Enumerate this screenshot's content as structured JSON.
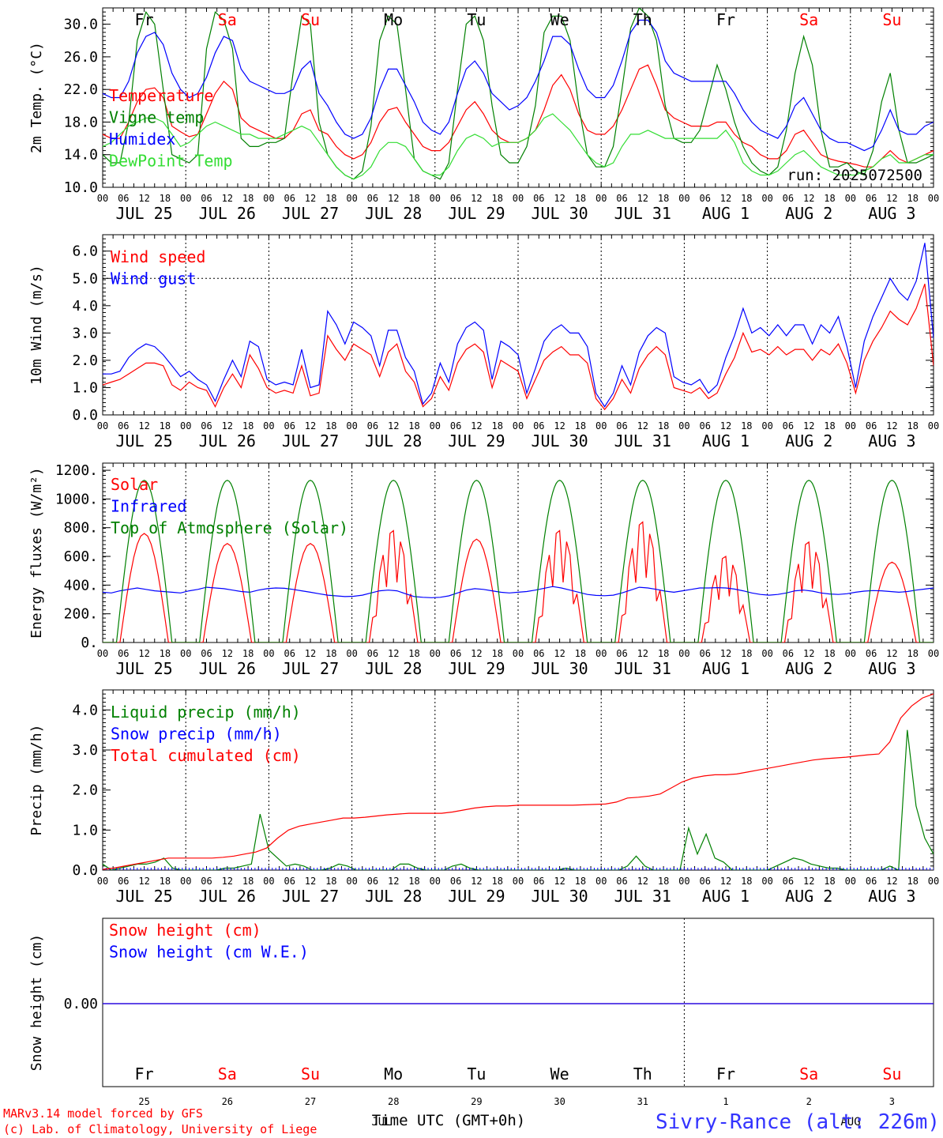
{
  "colors": {
    "red": "#ff0000",
    "green": "#008000",
    "blue": "#0000ff",
    "lime": "#33dd33",
    "black": "#000000"
  },
  "days": {
    "names": [
      "Fr",
      "Sa",
      "Su",
      "Mo",
      "Tu",
      "We",
      "Th",
      "Fr",
      "Sa",
      "Su"
    ],
    "weekend": [
      false,
      true,
      true,
      false,
      false,
      false,
      false,
      false,
      true,
      true
    ],
    "dates": [
      "JUL 25",
      "JUL 26",
      "JUL 27",
      "JUL 28",
      "JUL 29",
      "JUL 30",
      "JUL 31",
      "AUG 1",
      "AUG 2",
      "AUG 3"
    ],
    "daynums": [
      "25",
      "26",
      "27",
      "28",
      "29",
      "30",
      "31",
      "1",
      "2",
      "3"
    ]
  },
  "hour_labels": [
    "00",
    "06",
    "12",
    "18"
  ],
  "last_hour_label": "00",
  "run_label": "run: 2025072500",
  "footer": {
    "model": "MARv3.14 model forced by GFS",
    "copyright": "(c) Lab. of Climatology, University of Liege",
    "xlabel": "Time UTC (GMT+0h)",
    "month_overprint": "JUL",
    "month_overprint_2": "AUG",
    "station": "Sivry-Rance (alt: 226m)"
  },
  "chart_data": [
    {
      "type": "line",
      "ylabel": "2m Temp. (°C)",
      "ylim": [
        10,
        32
      ],
      "yticks": [
        "10.0",
        "14.0",
        "18.0",
        "22.0",
        "26.0",
        "30.0"
      ],
      "x": "hours since JUL 25 00 UTC, every 3 h (0-240)",
      "series": [
        {
          "name": "Temperature",
          "color": "red",
          "values": [
            16.5,
            16.0,
            16.0,
            18.0,
            20.5,
            22.0,
            22.2,
            21.0,
            17.5,
            16.8,
            16.2,
            16.5,
            19.0,
            21.5,
            23.0,
            22.0,
            18.5,
            17.5,
            17.0,
            16.5,
            16.0,
            16.0,
            17.0,
            19.0,
            19.5,
            17.0,
            16.5,
            15.0,
            14.0,
            13.5,
            14.0,
            15.5,
            18.0,
            19.5,
            19.8,
            18.0,
            16.5,
            15.0,
            14.5,
            14.5,
            15.5,
            17.5,
            19.5,
            20.5,
            19.0,
            17.0,
            16.0,
            15.5,
            15.5,
            16.0,
            17.0,
            19.5,
            22.5,
            23.8,
            22.0,
            19.0,
            17.0,
            16.5,
            16.5,
            17.5,
            19.5,
            22.0,
            24.5,
            25.0,
            22.5,
            19.5,
            18.5,
            18.0,
            17.5,
            17.5,
            17.5,
            18.0,
            18.0,
            16.5,
            15.5,
            15.0,
            14.0,
            13.5,
            13.5,
            14.5,
            16.5,
            17.0,
            15.5,
            14.0,
            13.5,
            13.2,
            13.0,
            12.8,
            12.5,
            12.5,
            13.5,
            14.5,
            13.5,
            13.0,
            13.5,
            14.0,
            14.5
          ]
        },
        {
          "name": "Vigne temp",
          "color": "green",
          "values": [
            14.0,
            13.0,
            13.0,
            18.0,
            28.0,
            31.5,
            30.0,
            22.0,
            14.0,
            13.5,
            13.0,
            14.0,
            27.0,
            31.5,
            30.5,
            27.0,
            16.0,
            15.0,
            15.0,
            15.5,
            15.5,
            16.0,
            24.0,
            31.0,
            30.0,
            18.0,
            14.0,
            12.5,
            11.5,
            11.0,
            12.0,
            17.5,
            28.0,
            31.0,
            30.0,
            22.0,
            13.5,
            12.0,
            11.5,
            11.0,
            13.0,
            22.0,
            30.0,
            31.0,
            28.0,
            20.0,
            14.0,
            13.0,
            13.0,
            15.0,
            20.0,
            29.0,
            31.0,
            31.0,
            28.0,
            20.0,
            14.0,
            12.5,
            12.5,
            15.0,
            22.0,
            29.5,
            32.0,
            31.0,
            28.0,
            20.0,
            16.0,
            15.5,
            15.5,
            17.0,
            21.0,
            25.0,
            22.0,
            18.0,
            15.0,
            13.0,
            12.0,
            11.5,
            12.5,
            17.0,
            24.0,
            28.5,
            25.0,
            17.0,
            12.5,
            12.5,
            13.0,
            12.0,
            11.5,
            14.5,
            20.5,
            24.0,
            17.0,
            13.0,
            13.0,
            13.5,
            14.0
          ]
        },
        {
          "name": "Humidex",
          "color": "blue",
          "values": [
            21.5,
            21.0,
            21.0,
            23.0,
            26.5,
            28.5,
            29.0,
            27.5,
            24.0,
            22.0,
            21.0,
            21.5,
            23.5,
            26.5,
            28.5,
            28.0,
            24.5,
            23.0,
            22.5,
            22.0,
            21.5,
            21.5,
            22.0,
            24.5,
            25.5,
            21.5,
            20.0,
            18.0,
            16.5,
            16.0,
            16.5,
            18.5,
            22.0,
            24.5,
            24.5,
            22.5,
            20.5,
            18.0,
            17.0,
            16.5,
            18.0,
            21.5,
            24.5,
            25.5,
            24.0,
            21.5,
            20.5,
            19.5,
            20.0,
            21.0,
            23.0,
            25.5,
            28.5,
            28.5,
            27.5,
            24.5,
            22.0,
            21.0,
            21.0,
            22.5,
            25.5,
            29.0,
            30.5,
            30.5,
            29.0,
            25.5,
            24.0,
            23.5,
            23.0,
            23.0,
            23.0,
            23.0,
            23.0,
            21.5,
            19.5,
            18.0,
            17.0,
            16.5,
            16.0,
            17.5,
            20.0,
            21.0,
            19.0,
            17.0,
            16.0,
            15.5,
            15.5,
            15.0,
            14.5,
            15.0,
            17.0,
            19.5,
            17.0,
            16.5,
            16.5,
            17.5,
            18.0
          ]
        },
        {
          "name": "DewPoint Temp",
          "color": "lime",
          "values": [
            15.0,
            15.5,
            16.5,
            17.5,
            18.0,
            18.5,
            18.5,
            18.0,
            16.5,
            15.0,
            15.5,
            16.5,
            17.5,
            18.0,
            17.5,
            17.0,
            16.5,
            16.5,
            16.0,
            16.0,
            16.0,
            16.5,
            17.0,
            17.5,
            17.0,
            15.5,
            14.0,
            12.5,
            11.5,
            11.0,
            11.5,
            12.5,
            14.5,
            15.5,
            15.5,
            15.0,
            13.5,
            12.0,
            11.5,
            11.5,
            12.5,
            14.5,
            16.0,
            16.5,
            16.0,
            15.0,
            15.5,
            15.5,
            15.5,
            16.0,
            17.0,
            18.5,
            19.0,
            18.0,
            17.0,
            15.5,
            14.0,
            13.0,
            12.5,
            13.0,
            15.0,
            16.5,
            16.5,
            17.0,
            16.5,
            16.0,
            16.0,
            16.0,
            16.0,
            16.0,
            16.0,
            16.0,
            17.0,
            15.5,
            13.0,
            12.0,
            11.5,
            11.5,
            12.0,
            13.0,
            14.0,
            14.5,
            13.5,
            12.5,
            12.0,
            11.5,
            11.5,
            11.5,
            12.0,
            12.5,
            13.5,
            14.0,
            13.0,
            13.0,
            13.5,
            14.0,
            14.0
          ]
        }
      ]
    },
    {
      "type": "line",
      "ylabel": "10m Wind (m/s)",
      "ylim": [
        0,
        6.6
      ],
      "yticks": [
        "0.0",
        "1.0",
        "2.0",
        "3.0",
        "4.0",
        "5.0",
        "6.0"
      ],
      "reference_line": 5.0,
      "series": [
        {
          "name": "Wind speed",
          "color": "red",
          "values": [
            1.1,
            1.2,
            1.3,
            1.5,
            1.7,
            1.9,
            1.9,
            1.8,
            1.1,
            0.9,
            1.2,
            1.0,
            0.9,
            0.3,
            1.0,
            1.5,
            1.0,
            2.2,
            1.7,
            1.0,
            0.8,
            0.9,
            0.8,
            1.8,
            0.7,
            0.8,
            2.9,
            2.4,
            2.0,
            2.6,
            2.4,
            2.2,
            1.4,
            2.3,
            2.6,
            1.6,
            1.2,
            0.3,
            0.6,
            1.4,
            0.9,
            1.9,
            2.4,
            2.6,
            2.3,
            1.0,
            2.0,
            1.8,
            1.6,
            0.6,
            1.3,
            2.0,
            2.3,
            2.5,
            2.2,
            2.2,
            1.9,
            0.6,
            0.2,
            0.6,
            1.3,
            0.8,
            1.7,
            2.2,
            2.5,
            2.2,
            1.0,
            0.9,
            0.8,
            1.0,
            0.6,
            0.8,
            1.5,
            2.1,
            3.0,
            2.3,
            2.4,
            2.2,
            2.5,
            2.2,
            2.4,
            2.4,
            2.0,
            2.4,
            2.2,
            2.6,
            1.9,
            0.8,
            2.0,
            2.7,
            3.2,
            3.8,
            3.5,
            3.3,
            3.9,
            4.8,
            1.8
          ]
        },
        {
          "name": "Wind gust",
          "color": "blue",
          "values": [
            1.5,
            1.5,
            1.6,
            2.1,
            2.4,
            2.6,
            2.5,
            2.2,
            1.8,
            1.4,
            1.6,
            1.3,
            1.1,
            0.5,
            1.3,
            2.0,
            1.4,
            2.7,
            2.5,
            1.3,
            1.1,
            1.2,
            1.1,
            2.4,
            1.0,
            1.1,
            3.8,
            3.3,
            2.6,
            3.4,
            3.2,
            2.9,
            1.8,
            3.1,
            3.1,
            2.1,
            1.6,
            0.4,
            0.8,
            1.9,
            1.2,
            2.6,
            3.2,
            3.4,
            3.1,
            1.3,
            2.7,
            2.5,
            2.2,
            0.8,
            1.7,
            2.7,
            3.1,
            3.3,
            3.0,
            3.0,
            2.5,
            0.8,
            0.3,
            0.8,
            1.8,
            1.1,
            2.3,
            2.9,
            3.2,
            3.0,
            1.4,
            1.2,
            1.1,
            1.3,
            0.8,
            1.1,
            2.1,
            2.9,
            3.9,
            3.0,
            3.2,
            2.9,
            3.3,
            2.9,
            3.3,
            3.3,
            2.6,
            3.3,
            3.0,
            3.6,
            2.5,
            1.0,
            2.7,
            3.6,
            4.3,
            5.0,
            4.5,
            4.2,
            4.9,
            6.3,
            2.8
          ]
        }
      ]
    },
    {
      "type": "line",
      "ylabel": "Energy fluxes (W/m²)",
      "ylim": [
        0,
        1250
      ],
      "yticks": [
        "0.",
        "200.",
        "400.",
        "600.",
        "800.",
        "1000.",
        "1200."
      ],
      "series": [
        {
          "name": "Solar",
          "color": "red",
          "daily_peaks": [
            760,
            690,
            690,
            780,
            720,
            780,
            840,
            600,
            700,
            560
          ]
        },
        {
          "name": "Infrared",
          "color": "blue",
          "values": [
            350,
            345,
            360,
            370,
            380,
            370,
            360,
            355,
            350,
            345,
            360,
            370,
            385,
            380,
            375,
            365,
            355,
            350,
            365,
            375,
            380,
            378,
            370,
            360,
            350,
            340,
            330,
            325,
            320,
            322,
            330,
            345,
            360,
            365,
            360,
            340,
            320,
            315,
            312,
            315,
            325,
            345,
            365,
            375,
            370,
            360,
            350,
            345,
            350,
            355,
            365,
            378,
            390,
            380,
            365,
            350,
            335,
            328,
            326,
            330,
            345,
            365,
            385,
            380,
            370,
            358,
            350,
            360,
            370,
            380,
            380,
            382,
            380,
            372,
            360,
            345,
            335,
            330,
            335,
            345,
            360,
            365,
            358,
            345,
            338,
            335,
            340,
            350,
            358,
            362,
            360,
            355,
            350,
            355,
            365,
            372,
            380
          ]
        },
        {
          "name": "Top of Atmosphere (Solar)",
          "color": "green",
          "daily_peak": 1130
        }
      ]
    },
    {
      "type": "line",
      "ylabel": "Precip (mm/h)",
      "ylim": [
        0,
        4.5
      ],
      "yticks": [
        "0.0",
        "1.0",
        "2.0",
        "3.0",
        "4.0"
      ],
      "series": [
        {
          "name": "Liquid precip (mm/h)",
          "color": "green",
          "values": [
            0.15,
            0,
            0.05,
            0.1,
            0.15,
            0.15,
            0.2,
            0.3,
            0.05,
            0,
            0,
            0,
            0,
            0,
            0.05,
            0.05,
            0.1,
            0.15,
            1.4,
            0.5,
            0.3,
            0.1,
            0.15,
            0.1,
            0,
            0,
            0.05,
            0.15,
            0.1,
            0,
            0,
            0,
            0,
            0,
            0.15,
            0.15,
            0.05,
            0,
            0,
            0,
            0.1,
            0.15,
            0.05,
            0,
            0,
            0,
            0,
            0,
            0,
            0,
            0,
            0,
            0,
            0.05,
            0,
            0,
            0,
            0,
            0,
            0,
            0.1,
            0.35,
            0.1,
            0,
            0,
            0,
            0,
            1.05,
            0.4,
            0.9,
            0.3,
            0.2,
            0,
            0,
            0,
            0,
            0,
            0.1,
            0.2,
            0.3,
            0.25,
            0.15,
            0.1,
            0.05,
            0.05,
            0,
            0,
            0,
            0,
            0,
            0.1,
            0,
            3.5,
            1.6,
            0.8,
            0.4
          ]
        },
        {
          "name": "Snow precip (mm/h)",
          "color": "blue",
          "values": [
            0
          ]
        },
        {
          "name": "Total cumulated (cm)",
          "color": "red",
          "values": [
            0.02,
            0.05,
            0.1,
            0.15,
            0.2,
            0.25,
            0.3,
            0.3,
            0.3,
            0.3,
            0.3,
            0.32,
            0.35,
            0.4,
            0.45,
            0.55,
            0.8,
            1.0,
            1.1,
            1.15,
            1.2,
            1.25,
            1.3,
            1.3,
            1.32,
            1.35,
            1.38,
            1.4,
            1.42,
            1.42,
            1.42,
            1.42,
            1.45,
            1.5,
            1.55,
            1.58,
            1.6,
            1.6,
            1.62,
            1.62,
            1.62,
            1.62,
            1.62,
            1.62,
            1.63,
            1.64,
            1.65,
            1.7,
            1.8,
            1.82,
            1.85,
            1.9,
            2.05,
            2.2,
            2.3,
            2.35,
            2.38,
            2.38,
            2.4,
            2.45,
            2.5,
            2.55,
            2.6,
            2.65,
            2.7,
            2.75,
            2.78,
            2.8,
            2.82,
            2.85,
            2.88,
            2.9,
            3.2,
            3.8,
            4.1,
            4.3,
            4.4
          ]
        }
      ]
    },
    {
      "type": "line",
      "ylabel": "Snow height (cm)",
      "yticks": [
        "0.00"
      ],
      "series": [
        {
          "name": "Snow height (cm)",
          "color": "red",
          "values": [
            0
          ]
        },
        {
          "name": "Snow height (cm W.E.)",
          "color": "blue",
          "values": [
            0
          ]
        }
      ]
    }
  ]
}
